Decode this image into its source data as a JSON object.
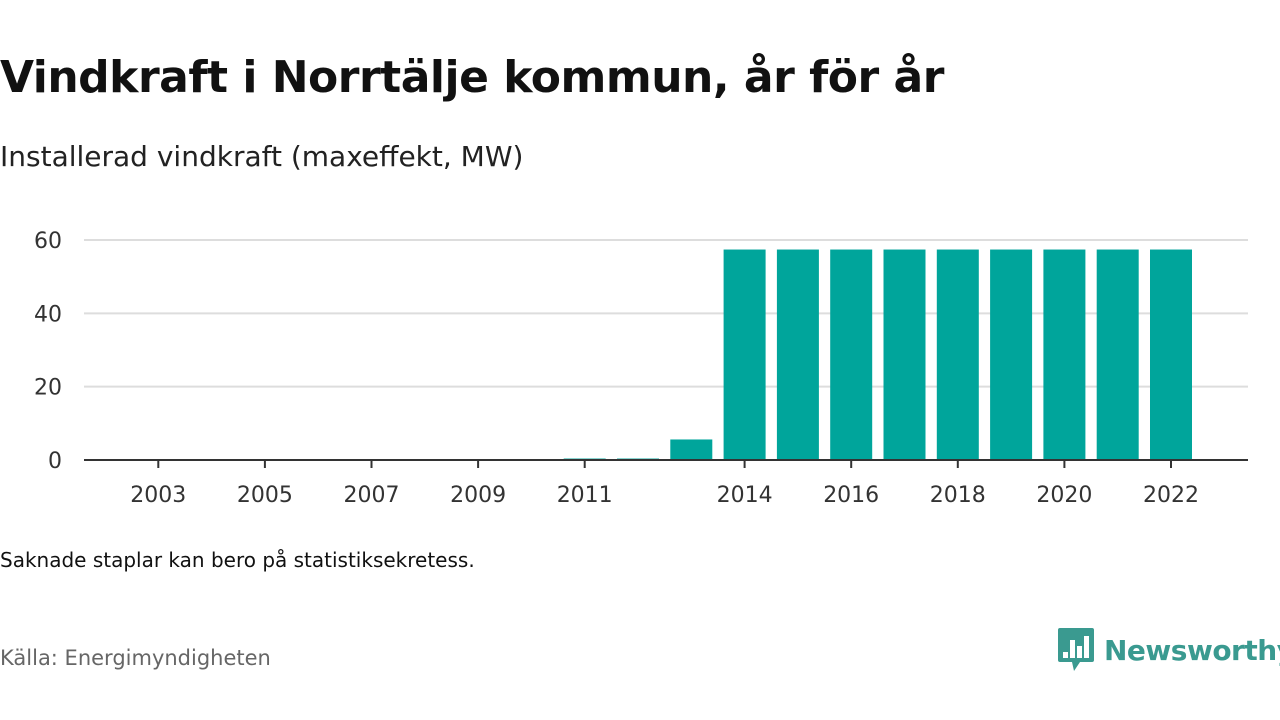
{
  "title": "Vindkraft i Norrtälje kommun, år för år",
  "subtitle": "Installerad vindkraft (maxeffekt, MW)",
  "note": "Saknade staplar kan bero på statistiksekretess.",
  "source": "Källa: Energimyndigheten",
  "brand": {
    "name": "Newsworthy",
    "color": "#3a9a90",
    "icon": "bar-chart-chat-icon"
  },
  "chart_data": {
    "type": "bar",
    "categories": [
      "2002",
      "2003",
      "2004",
      "2005",
      "2006",
      "2007",
      "2008",
      "2009",
      "2010",
      "2011",
      "2012",
      "2013",
      "2014",
      "2015",
      "2016",
      "2017",
      "2018",
      "2019",
      "2020",
      "2021",
      "2022"
    ],
    "x_tick_labels": [
      "2003",
      "2005",
      "2007",
      "2009",
      "2011",
      "2014",
      "2016",
      "2018",
      "2020",
      "2022"
    ],
    "values": [
      0,
      0,
      0,
      0,
      0,
      0,
      0,
      0,
      0,
      0.4,
      0.4,
      5.6,
      57.4,
      57.4,
      57.4,
      57.4,
      57.4,
      57.4,
      57.4,
      57.4,
      57.4
    ],
    "y_ticks": [
      0,
      20,
      40,
      60
    ],
    "ylim": [
      0,
      60
    ],
    "bar_color": "#00a59b",
    "grid": true,
    "title": "Vindkraft i Norrtälje kommun, år för år",
    "xlabel": "",
    "ylabel": ""
  }
}
